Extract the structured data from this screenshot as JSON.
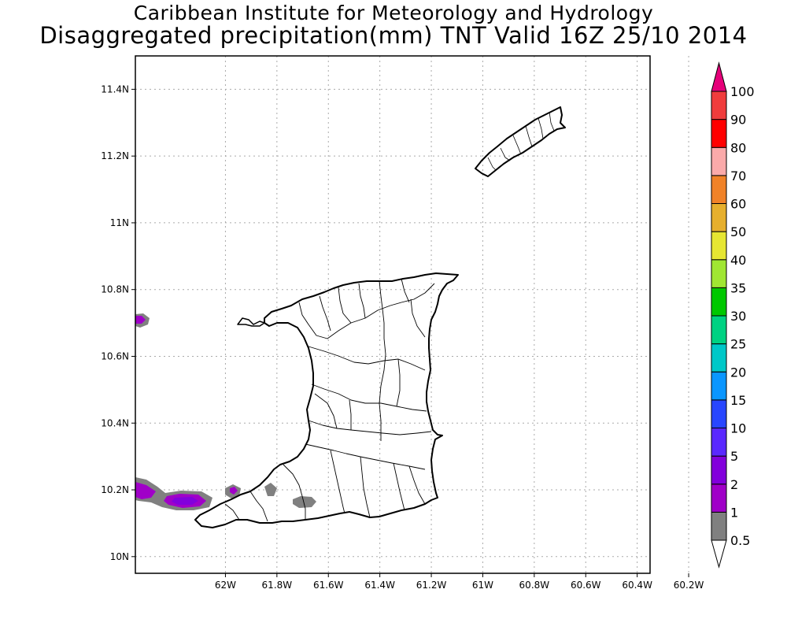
{
  "header": {
    "institute": "Caribbean Institute for Meteorology and Hydrology",
    "title": "Disaggregated precipitation(mm) TNT Valid 16Z 25/10 2014"
  },
  "map": {
    "lon_range": [
      -62.35,
      -60.35
    ],
    "lat_range": [
      9.95,
      11.5
    ],
    "lon_ticks": [
      {
        "value": -62.0,
        "label": "62W"
      },
      {
        "value": -61.8,
        "label": "61.8W"
      },
      {
        "value": -61.6,
        "label": "61.6W"
      },
      {
        "value": -61.4,
        "label": "61.4W"
      },
      {
        "value": -61.2,
        "label": "61.2W"
      },
      {
        "value": -61.0,
        "label": "61W"
      },
      {
        "value": -60.8,
        "label": "60.8W"
      },
      {
        "value": -60.6,
        "label": "60.6W"
      },
      {
        "value": -60.4,
        "label": "60.4W"
      },
      {
        "value": -60.2,
        "label": "60.2W"
      }
    ],
    "lat_ticks": [
      {
        "value": 10.0,
        "label": "10N"
      },
      {
        "value": 10.2,
        "label": "10.2N"
      },
      {
        "value": 10.4,
        "label": "10.4N"
      },
      {
        "value": 10.6,
        "label": "10.6N"
      },
      {
        "value": 10.8,
        "label": "10.8N"
      },
      {
        "value": 11.0,
        "label": "11N"
      },
      {
        "value": 11.2,
        "label": "11.2N"
      },
      {
        "value": 11.4,
        "label": "11.4N"
      }
    ],
    "grid": true,
    "islands": [
      "Trinidad",
      "Tobago"
    ]
  },
  "legend": {
    "placement": "right",
    "levels": [
      {
        "label": "0.5",
        "color": "#ffffff"
      },
      {
        "label": "1",
        "color": "#808080"
      },
      {
        "label": "2",
        "color": "#a000c8"
      },
      {
        "label": "5",
        "color": "#8200dc"
      },
      {
        "label": "10",
        "color": "#5a28ff"
      },
      {
        "label": "15",
        "color": "#2846ff"
      },
      {
        "label": "20",
        "color": "#0a96ff"
      },
      {
        "label": "25",
        "color": "#00c8c8"
      },
      {
        "label": "30",
        "color": "#00d282"
      },
      {
        "label": "35",
        "color": "#00c800"
      },
      {
        "label": "40",
        "color": "#a0e632"
      },
      {
        "label": "50",
        "color": "#e6e632"
      },
      {
        "label": "60",
        "color": "#e6af2d"
      },
      {
        "label": "70",
        "color": "#f08228"
      },
      {
        "label": "80",
        "color": "#faaaaa"
      },
      {
        "label": "90",
        "color": "#ff0000"
      },
      {
        "label": "100",
        "color": "#f03c3c"
      }
    ],
    "overflow_color": "#e6007a"
  }
}
